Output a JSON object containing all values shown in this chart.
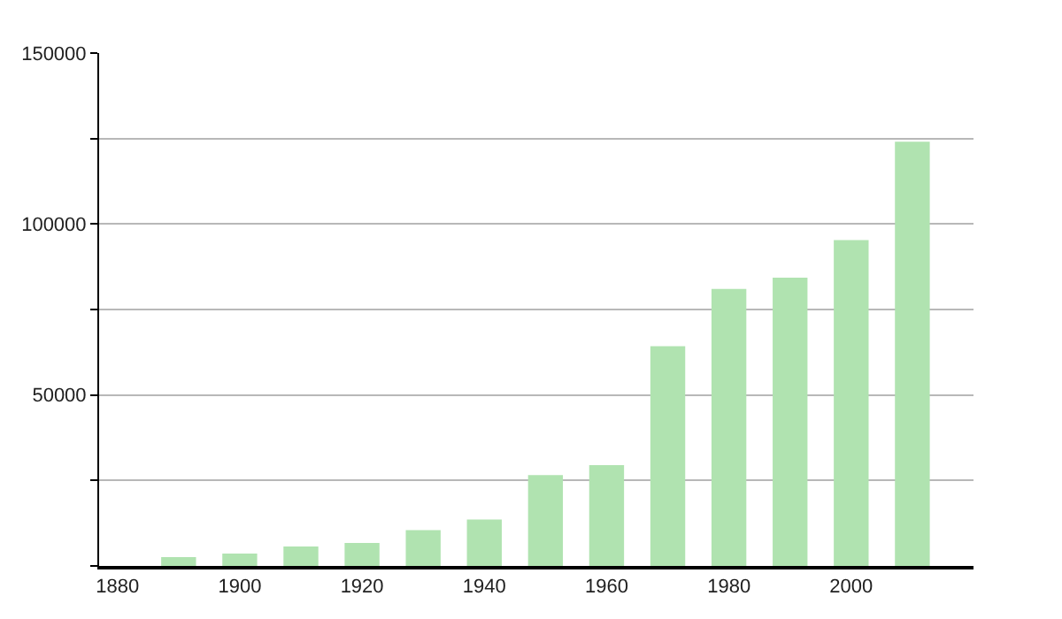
{
  "chart_data": {
    "type": "bar",
    "x": [
      1890,
      1900,
      1910,
      1920,
      1930,
      1940,
      1950,
      1960,
      1970,
      1980,
      1990,
      2000,
      2010
    ],
    "values": [
      2600,
      3600,
      5700,
      6700,
      10500,
      13600,
      26600,
      29500,
      64300,
      81000,
      84300,
      95300,
      124100
    ],
    "color": "#b0e3b0",
    "xlim": [
      1877,
      2020
    ],
    "xticks": [
      1880,
      1900,
      1920,
      1940,
      1960,
      1980,
      2000
    ],
    "ylim": [
      0,
      150000
    ],
    "yticks": [
      {
        "value": 0,
        "label": null
      },
      {
        "value": 25000,
        "label": null
      },
      50000,
      {
        "value": 75000,
        "label": null
      },
      100000,
      {
        "value": 125000,
        "label": null
      },
      150000
    ],
    "grid": "y"
  }
}
